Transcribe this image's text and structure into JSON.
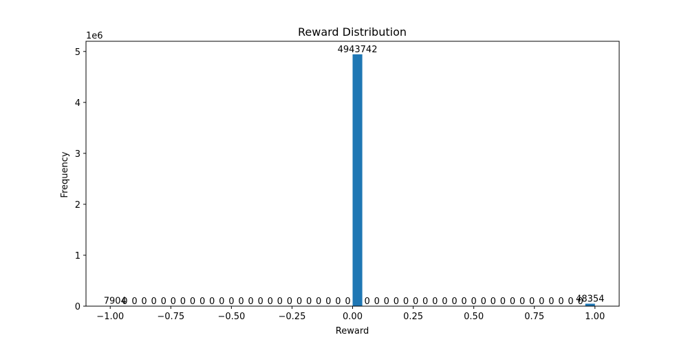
{
  "chart_data": {
    "type": "bar",
    "title": "Reward Distribution",
    "xlabel": "Reward",
    "ylabel": "Frequency",
    "y_scale_label": "1e6",
    "xlim": [
      -1.1,
      1.1
    ],
    "ylim": [
      0,
      5200000
    ],
    "bar_color": "#1f77b4",
    "bins": {
      "count": 50,
      "start": -1.0,
      "end": 1.0
    },
    "x": [
      -0.98,
      -0.94,
      -0.9,
      -0.86,
      -0.82,
      -0.78,
      -0.74,
      -0.7,
      -0.66,
      -0.62,
      -0.58,
      -0.54,
      -0.5,
      -0.46,
      -0.42,
      -0.38,
      -0.34,
      -0.3,
      -0.26,
      -0.22,
      -0.18,
      -0.14,
      -0.1,
      -0.06,
      -0.02,
      0.02,
      0.06,
      0.1,
      0.14,
      0.18,
      0.22,
      0.26,
      0.3,
      0.34,
      0.38,
      0.42,
      0.46,
      0.5,
      0.54,
      0.58,
      0.62,
      0.66,
      0.7,
      0.74,
      0.78,
      0.82,
      0.86,
      0.9,
      0.94,
      0.98
    ],
    "values": [
      7904,
      0,
      0,
      0,
      0,
      0,
      0,
      0,
      0,
      0,
      0,
      0,
      0,
      0,
      0,
      0,
      0,
      0,
      0,
      0,
      0,
      0,
      0,
      0,
      0,
      4943742,
      0,
      0,
      0,
      0,
      0,
      0,
      0,
      0,
      0,
      0,
      0,
      0,
      0,
      0,
      0,
      0,
      0,
      0,
      0,
      0,
      0,
      0,
      0,
      48354
    ],
    "x_ticks": [
      -1.0,
      -0.75,
      -0.5,
      -0.25,
      0.0,
      0.25,
      0.5,
      0.75,
      1.0
    ],
    "x_tick_labels": [
      "−1.00",
      "−0.75",
      "−0.50",
      "−0.25",
      "0.00",
      "0.25",
      "0.50",
      "0.75",
      "1.00"
    ],
    "y_ticks": [
      0,
      1000000,
      2000000,
      3000000,
      4000000,
      5000000
    ],
    "y_tick_labels": [
      "0",
      "1",
      "2",
      "3",
      "4",
      "5"
    ],
    "grid": false,
    "legend": "none"
  }
}
